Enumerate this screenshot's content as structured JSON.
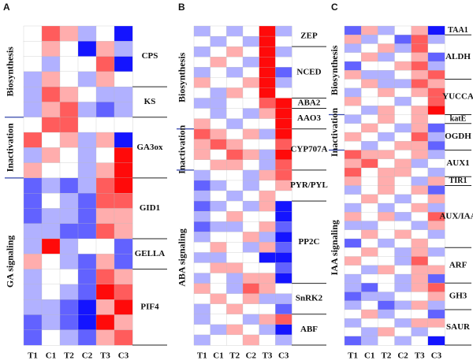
{
  "chart_data": [
    {
      "type": "heatmap",
      "panel": "A",
      "categories": [
        "T1",
        "C1",
        "T2",
        "C2",
        "T3",
        "C3"
      ],
      "zlim": [
        -3,
        3
      ],
      "colors": {
        "low": "#1414ff",
        "mid": "#ffffff",
        "high": "#ff0a0a"
      },
      "stages": [
        {
          "name": "Biosynthesis",
          "genes": [
            {
              "name": "CPS",
              "values": [
                [
                  0,
                  2,
                  1,
                  -1,
                  0,
                  -3
                ],
                [
                  0,
                  1,
                  0,
                  -3,
                  1,
                  -1
                ],
                [
                  0,
                  -1,
                  0,
                  0,
                  2,
                  -3
                ],
                [
                  -1,
                  1,
                  0,
                  -1,
                  1,
                  0
                ]
              ]
            },
            {
              "name": "KS",
              "values": [
                [
                  -1,
                  2,
                  1,
                  0,
                  -1,
                  -1
                ],
                [
                  -1,
                  1,
                  2,
                  -1,
                  -2,
                  -1
                ]
              ]
            }
          ]
        },
        {
          "name": "Inactivation",
          "genes": [
            {
              "name": "GA3ox",
              "values": [
                [
                  0,
                  2,
                  2,
                  0,
                  0,
                  0
                ],
                [
                  2,
                  0,
                  1,
                  -1,
                  1,
                  -3
                ],
                [
                  -1,
                  1,
                  0,
                  -1,
                  0,
                  3
                ],
                [
                  1,
                  0,
                  0,
                  -1,
                  1,
                  3
                ]
              ]
            }
          ]
        },
        {
          "name": "GA signaling",
          "genes": [
            {
              "name": "GID1",
              "values": [
                [
                  -2,
                  -1,
                  -2,
                  -1,
                  2,
                  3
                ],
                [
                  -2,
                  0,
                  -1,
                  -2,
                  2,
                  2
                ],
                [
                  -2,
                  -1,
                  -1,
                  -2,
                  1,
                  1
                ],
                [
                  -1,
                  -1,
                  -2,
                  -2,
                  2,
                  1
                ]
              ]
            },
            {
              "name": "GELLA",
              "values": [
                [
                  -1,
                  3,
                  -1,
                  0,
                  0,
                  -2
                ],
                [
                  1,
                  0,
                  -1,
                  -2,
                  1,
                  -2
                ]
              ]
            },
            {
              "name": "PIF4",
              "values": [
                [
                  -1,
                  0,
                  0,
                  -2,
                  2,
                  1
                ],
                [
                  -1,
                  0,
                  -1,
                  -2,
                  3,
                  2
                ],
                [
                  -1,
                  -1,
                  -2,
                  -3,
                  1,
                  3
                ],
                [
                  -2,
                  -1,
                  -2,
                  -3,
                  3,
                  1
                ],
                [
                  -2,
                  0,
                  -1,
                  -2,
                  1,
                  2
                ]
              ]
            }
          ]
        }
      ]
    },
    {
      "type": "heatmap",
      "panel": "B",
      "categories": [
        "T1",
        "C1",
        "T2",
        "C2",
        "T3",
        "C3"
      ],
      "zlim": [
        -3,
        3
      ],
      "colors": {
        "low": "#1414ff",
        "mid": "#ffffff",
        "high": "#ff0a0a"
      },
      "stages": [
        {
          "name": "Biosynthesis",
          "genes": [
            {
              "name": "ZEP",
              "values": [
                [
                  -1,
                  0,
                  -1,
                  0,
                  3,
                  -1
                ],
                [
                  0,
                  -1,
                  0,
                  -1,
                  3,
                  0
                ]
              ]
            },
            {
              "name": "NCED",
              "values": [
                [
                  -1,
                  0,
                  1,
                  0,
                  3,
                  -1
                ],
                [
                  0,
                  1,
                  0,
                  -1,
                  3,
                  0
                ],
                [
                  -1,
                  0,
                  -1,
                  0,
                  3,
                  -2
                ],
                [
                  1,
                  0,
                  0,
                  1,
                  3,
                  -1
                ],
                [
                  0,
                  -1,
                  1,
                  0,
                  3,
                  0
                ]
              ]
            },
            {
              "name": "ABA2",
              "values": [
                [
                  -1,
                  -1,
                  0,
                  0,
                  2,
                  3
                ]
              ]
            },
            {
              "name": "AAO3",
              "values": [
                [
                  0,
                  -1,
                  0,
                  -1,
                  1,
                  3
                ],
                [
                  1,
                  0,
                  -1,
                  0,
                  0,
                  3
                ]
              ]
            }
          ]
        },
        {
          "name": "Inactivation",
          "genes": [
            {
              "name": "CYP707A",
              "values": [
                [
                  2,
                  1,
                  0,
                  1,
                  -1,
                  3
                ],
                [
                  1,
                  2,
                  1,
                  0,
                  0,
                  2
                ],
                [
                  1,
                  0,
                  2,
                  1,
                  -1,
                  3
                ],
                [
                  0,
                  1,
                  1,
                  0,
                  -1,
                  2
                ]
              ]
            }
          ]
        },
        {
          "name": "ABA signaling",
          "genes": [
            {
              "name": "PYR/PYL",
              "values": [
                [
                  -1,
                  0,
                  0,
                  -1,
                  1,
                  2
                ],
                [
                  -2,
                  -1,
                  0,
                  -1,
                  0,
                  1
                ],
                [
                  -1,
                  0,
                  -1,
                  0,
                  1,
                  0
                ]
              ]
            },
            {
              "name": "PP2C",
              "values": [
                [
                  -2,
                  -1,
                  0,
                  -1,
                  1,
                  -3
                ],
                [
                  -1,
                  0,
                  1,
                  0,
                  0,
                  -3
                ],
                [
                  -2,
                  -1,
                  -1,
                  0,
                  1,
                  -2
                ],
                [
                  -1,
                  0,
                  0,
                  1,
                  -1,
                  -3
                ],
                [
                  0,
                  1,
                  0,
                  -1,
                  1,
                  -2
                ],
                [
                  -1,
                  -1,
                  0,
                  0,
                  -3,
                  -3
                ],
                [
                  0,
                  1,
                  1,
                  0,
                  0,
                  -2
                ],
                [
                  -1,
                  0,
                  -1,
                  1,
                  1,
                  -3
                ]
              ]
            },
            {
              "name": "SnRK2",
              "values": [
                [
                  1,
                  0,
                  -1,
                  2,
                  1,
                  0
                ],
                [
                  0,
                  1,
                  0,
                  1,
                  -1,
                  -1
                ],
                [
                  -1,
                  0,
                  1,
                  0,
                  0,
                  -2
                ]
              ]
            },
            {
              "name": "ABF",
              "values": [
                [
                  -1,
                  0,
                  0,
                  -1,
                  1,
                  2
                ],
                [
                  0,
                  -1,
                  1,
                  0,
                  -1,
                  -3
                ],
                [
                  -1,
                  0,
                  0,
                  1,
                  0,
                  -1
                ]
              ]
            }
          ]
        }
      ]
    },
    {
      "type": "heatmap",
      "panel": "C",
      "categories": [
        "T1",
        "C1",
        "T2",
        "C2",
        "T3",
        "C3"
      ],
      "zlim": [
        -3,
        3
      ],
      "colors": {
        "low": "#1414ff",
        "mid": "#ffffff",
        "high": "#ff0a0a"
      },
      "stages": [
        {
          "name": "Biosynthesis",
          "genes": [
            {
              "name": "TAA1",
              "values": [
                [
                  -2,
                  1,
                  -1,
                  0,
                  1,
                  -3
                ]
              ]
            },
            {
              "name": "ALDH",
              "values": [
                [
                  1,
                  -1,
                  0,
                  -2,
                  2,
                  -1
                ],
                [
                  -1,
                  0,
                  1,
                  -1,
                  2,
                  0
                ],
                [
                  0,
                  1,
                  -1,
                  0,
                  1,
                  -2
                ],
                [
                  -2,
                  0,
                  0,
                  1,
                  2,
                  -1
                ],
                [
                  1,
                  -1,
                  -1,
                  0,
                  1,
                  2
                ]
              ]
            },
            {
              "name": "YUCCA",
              "values": [
                [
                  0,
                  1,
                  -1,
                  -1,
                  2,
                  1
                ],
                [
                  -1,
                  0,
                  1,
                  0,
                  1,
                  2
                ],
                [
                  1,
                  0,
                  0,
                  -1,
                  0,
                  2
                ],
                [
                  0,
                  -1,
                  1,
                  0,
                  1,
                  3
                ]
              ]
            }
          ]
        },
        {
          "name": "Inactivation",
          "genes": [
            {
              "name": "katE",
              "values": [
                [
                  -1,
                  0,
                  1,
                  0,
                  1,
                  0
                ]
              ]
            },
            {
              "name": "OGDH",
              "values": [
                [
                  0,
                  1,
                  0,
                  -1,
                  1,
                  -2
                ],
                [
                  1,
                  0,
                  -1,
                  0,
                  2,
                  -1
                ],
                [
                  0,
                  -1,
                  0,
                  1,
                  1,
                  -2
                ]
              ]
            }
          ]
        },
        {
          "name": "IAA signaling",
          "genes": [
            {
              "name": "AUX1",
              "values": [
                [
                  2,
                  1,
                  1,
                  0,
                  1,
                  -1
                ],
                [
                  1,
                  2,
                  0,
                  1,
                  -1,
                  0
                ],
                [
                  2,
                  0,
                  1,
                  1,
                  0,
                  -1
                ]
              ]
            },
            {
              "name": "TIR1",
              "values": [
                [
                  1,
                  0,
                  1,
                  0,
                  -1,
                  1
                ]
              ]
            },
            {
              "name": "AUX/IAA",
              "values": [
                [
                  -1,
                  0,
                  1,
                  0,
                  1,
                  -2
                ],
                [
                  0,
                  1,
                  0,
                  -1,
                  0,
                  1
                ],
                [
                  -1,
                  0,
                  -1,
                  0,
                  1,
                  -1
                ],
                [
                  1,
                  0,
                  1,
                  -1,
                  0,
                  2
                ],
                [
                  -1,
                  -1,
                  0,
                  0,
                  -1,
                  1
                ],
                [
                  0,
                  1,
                  0,
                  1,
                  0,
                  -1
                ],
                [
                  -2,
                  0,
                  -1,
                  0,
                  1,
                  0
                ]
              ]
            },
            {
              "name": "ARF",
              "values": [
                [
                  0,
                  1,
                  0,
                  -1,
                  1,
                  -1
                ],
                [
                  1,
                  0,
                  0,
                  -1,
                  2,
                  0
                ],
                [
                  0,
                  -1,
                  1,
                  0,
                  1,
                  1
                ],
                [
                  -1,
                  0,
                  0,
                  -1,
                  1,
                  -2
                ]
              ]
            },
            {
              "name": "GH3",
              "values": [
                [
                  -1,
                  -2,
                  0,
                  -1,
                  1,
                  2
                ],
                [
                  -2,
                  -1,
                  -1,
                  0,
                  0,
                  1
                ],
                [
                  -1,
                  0,
                  -2,
                  -1,
                  1,
                  -1
                ]
              ]
            },
            {
              "name": "SAUR",
              "values": [
                [
                  0,
                  1,
                  -1,
                  0,
                  0,
                  -2
                ],
                [
                  -1,
                  0,
                  0,
                  -1,
                  1,
                  1
                ],
                [
                  0,
                  -1,
                  1,
                  0,
                  -1,
                  0
                ],
                [
                  -2,
                  -1,
                  0,
                  -1,
                  0,
                  -3
                ]
              ]
            }
          ]
        }
      ]
    }
  ]
}
